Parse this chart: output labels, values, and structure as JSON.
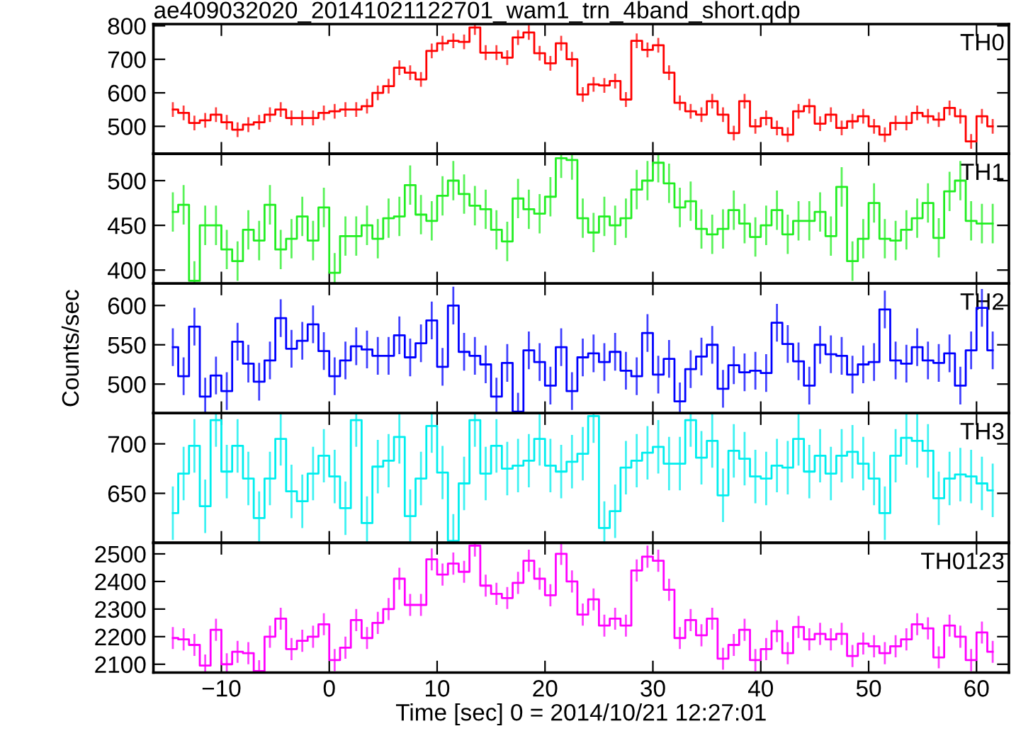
{
  "chart_data": [
    {
      "type": "step",
      "title": "ae409032020_20141021122701_wam1_trn_4band_short.qdp",
      "tick_labels": "y",
      "xlim": [
        -16.3,
        63
      ],
      "xticks": [
        -10,
        0,
        10,
        20,
        30,
        40,
        50,
        60
      ],
      "ylim": [
        418,
        805
      ],
      "yticks": [
        500,
        600,
        700,
        800
      ],
      "grid": false,
      "legend": false,
      "x": [
        -14.5,
        -13.5,
        -12.5,
        -11.5,
        -10.5,
        -9.5,
        -8.5,
        -7.5,
        -6.5,
        -5.5,
        -4.5,
        -3.5,
        -2.5,
        -1.5,
        -0.5,
        0.5,
        1.5,
        2.5,
        3.5,
        4.5,
        5.5,
        6.5,
        7.5,
        8.5,
        9.5,
        10.5,
        11.5,
        12.5,
        13.5,
        14.5,
        15.5,
        16.5,
        17.5,
        18.5,
        19.5,
        20.5,
        21.5,
        22.5,
        23.5,
        24.5,
        25.5,
        26.5,
        27.5,
        28.5,
        29.5,
        30.5,
        31.5,
        32.5,
        33.5,
        34.5,
        35.5,
        36.5,
        37.5,
        38.5,
        39.5,
        40.5,
        41.5,
        42.5,
        43.5,
        44.5,
        45.5,
        46.5,
        47.5,
        48.5,
        49.5,
        50.5,
        51.5,
        52.5,
        53.5,
        54.5,
        55.5,
        56.5,
        57.5,
        58.5,
        59.5,
        60.5,
        61.5
      ],
      "series": [
        {
          "name": "TH0",
          "color": "#ff0000",
          "values": [
            550,
            540,
            510,
            518,
            535,
            512,
            490,
            505,
            512,
            535,
            550,
            525,
            525,
            525,
            540,
            545,
            550,
            550,
            560,
            600,
            620,
            675,
            660,
            640,
            725,
            748,
            755,
            752,
            795,
            720,
            720,
            705,
            765,
            780,
            718,
            688,
            748,
            700,
            595,
            625,
            622,
            635,
            580,
            755,
            728,
            742,
            660,
            570,
            545,
            535,
            575,
            535,
            480,
            575,
            500,
            525,
            495,
            475,
            545,
            560,
            508,
            535,
            495,
            515,
            530,
            500,
            475,
            510,
            510,
            540,
            530,
            520,
            555,
            530,
            455,
            530,
            500
          ],
          "errors": [
            22,
            22,
            22,
            22,
            22,
            22,
            22,
            22,
            22,
            22,
            22,
            22,
            22,
            22,
            22,
            22,
            22,
            22,
            22,
            22,
            22,
            22,
            22,
            22,
            22,
            22,
            22,
            22,
            22,
            22,
            22,
            22,
            22,
            22,
            22,
            22,
            22,
            22,
            22,
            22,
            22,
            22,
            22,
            22,
            22,
            22,
            22,
            22,
            22,
            22,
            22,
            22,
            22,
            22,
            22,
            22,
            22,
            22,
            22,
            22,
            22,
            22,
            22,
            22,
            22,
            22,
            22,
            22,
            22,
            22,
            22,
            22,
            22,
            22,
            22,
            22,
            22
          ]
        }
      ]
    },
    {
      "type": "step",
      "tick_labels": "y",
      "xlim": [
        -16.3,
        63
      ],
      "xticks": [
        -10,
        0,
        10,
        20,
        30,
        40,
        50,
        60
      ],
      "ylim": [
        385,
        530
      ],
      "yticks": [
        400,
        450,
        500
      ],
      "grid": false,
      "legend": false,
      "x": [
        -14.5,
        -13.5,
        -12.5,
        -11.5,
        -10.5,
        -9.5,
        -8.5,
        -7.5,
        -6.5,
        -5.5,
        -4.5,
        -3.5,
        -2.5,
        -1.5,
        -0.5,
        0.5,
        1.5,
        2.5,
        3.5,
        4.5,
        5.5,
        6.5,
        7.5,
        8.5,
        9.5,
        10.5,
        11.5,
        12.5,
        13.5,
        14.5,
        15.5,
        16.5,
        17.5,
        18.5,
        19.5,
        20.5,
        21.5,
        22.5,
        23.5,
        24.5,
        25.5,
        26.5,
        27.5,
        28.5,
        29.5,
        30.5,
        31.5,
        32.5,
        33.5,
        34.5,
        35.5,
        36.5,
        37.5,
        38.5,
        39.5,
        40.5,
        41.5,
        42.5,
        43.5,
        44.5,
        45.5,
        46.5,
        47.5,
        48.5,
        49.5,
        50.5,
        51.5,
        52.5,
        53.5,
        54.5,
        55.5,
        56.5,
        57.5,
        58.5,
        59.5,
        60.5,
        61.5
      ],
      "series": [
        {
          "name": "TH1",
          "color": "#22ee22",
          "values": [
            465,
            473,
            388,
            450,
            450,
            423,
            410,
            445,
            433,
            473,
            423,
            435,
            460,
            433,
            470,
            397,
            438,
            438,
            450,
            435,
            458,
            460,
            495,
            462,
            455,
            483,
            500,
            485,
            472,
            468,
            445,
            432,
            480,
            468,
            463,
            482,
            525,
            523,
            458,
            442,
            460,
            450,
            458,
            490,
            500,
            520,
            497,
            470,
            477,
            446,
            440,
            446,
            467,
            452,
            437,
            450,
            467,
            440,
            455,
            455,
            465,
            438,
            493,
            410,
            435,
            475,
            435,
            433,
            445,
            458,
            475,
            436,
            488,
            500,
            455,
            452,
            452
          ],
          "errors": [
            22,
            22,
            22,
            22,
            22,
            22,
            22,
            22,
            22,
            22,
            22,
            22,
            22,
            22,
            22,
            22,
            22,
            22,
            22,
            22,
            22,
            22,
            22,
            22,
            22,
            22,
            22,
            22,
            22,
            22,
            22,
            22,
            22,
            22,
            22,
            22,
            22,
            22,
            22,
            22,
            22,
            22,
            22,
            22,
            22,
            22,
            22,
            22,
            22,
            22,
            22,
            22,
            22,
            22,
            22,
            22,
            22,
            22,
            22,
            22,
            22,
            22,
            22,
            22,
            22,
            22,
            22,
            22,
            22,
            22,
            22,
            22,
            22,
            22,
            22,
            22,
            22
          ]
        }
      ]
    },
    {
      "type": "step",
      "tick_labels": "y",
      "ylabel": "Counts/sec",
      "xlim": [
        -16.3,
        63
      ],
      "xticks": [
        -10,
        0,
        10,
        20,
        30,
        40,
        50,
        60
      ],
      "ylim": [
        463,
        628
      ],
      "yticks": [
        500,
        550,
        600
      ],
      "grid": false,
      "legend": false,
      "x": [
        -14.5,
        -13.5,
        -12.5,
        -11.5,
        -10.5,
        -9.5,
        -8.5,
        -7.5,
        -6.5,
        -5.5,
        -4.5,
        -3.5,
        -2.5,
        -1.5,
        -0.5,
        0.5,
        1.5,
        2.5,
        3.5,
        4.5,
        5.5,
        6.5,
        7.5,
        8.5,
        9.5,
        10.5,
        11.5,
        12.5,
        13.5,
        14.5,
        15.5,
        16.5,
        17.5,
        18.5,
        19.5,
        20.5,
        21.5,
        22.5,
        23.5,
        24.5,
        25.5,
        26.5,
        27.5,
        28.5,
        29.5,
        30.5,
        31.5,
        32.5,
        33.5,
        34.5,
        35.5,
        36.5,
        37.5,
        38.5,
        39.5,
        40.5,
        41.5,
        42.5,
        43.5,
        44.5,
        45.5,
        46.5,
        47.5,
        48.5,
        49.5,
        50.5,
        51.5,
        52.5,
        53.5,
        54.5,
        55.5,
        56.5,
        57.5,
        58.5,
        59.5,
        60.5,
        61.5
      ],
      "series": [
        {
          "name": "TH2",
          "color": "#0000ff",
          "values": [
            547,
            510,
            573,
            484,
            511,
            491,
            554,
            526,
            503,
            530,
            584,
            545,
            555,
            576,
            542,
            510,
            530,
            548,
            544,
            536,
            536,
            562,
            534,
            552,
            581,
            522,
            600,
            541,
            536,
            525,
            484,
            527,
            465,
            543,
            528,
            498,
            547,
            491,
            534,
            539,
            528,
            541,
            517,
            510,
            565,
            512,
            532,
            478,
            519,
            535,
            550,
            494,
            524,
            515,
            517,
            514,
            578,
            551,
            529,
            498,
            550,
            538,
            536,
            512,
            525,
            528,
            595,
            530,
            526,
            547,
            530,
            527,
            539,
            498,
            543,
            597,
            543
          ],
          "errors": [
            24,
            24,
            24,
            24,
            24,
            24,
            24,
            24,
            24,
            24,
            24,
            24,
            24,
            24,
            24,
            24,
            24,
            24,
            24,
            24,
            24,
            24,
            24,
            24,
            24,
            24,
            24,
            24,
            24,
            24,
            24,
            24,
            24,
            24,
            24,
            24,
            24,
            24,
            24,
            24,
            24,
            24,
            24,
            24,
            24,
            24,
            24,
            24,
            24,
            24,
            24,
            24,
            24,
            24,
            24,
            24,
            24,
            24,
            24,
            24,
            24,
            24,
            24,
            24,
            24,
            24,
            24,
            24,
            24,
            24,
            24,
            24,
            24,
            24,
            24,
            24,
            24
          ]
        }
      ]
    },
    {
      "type": "step",
      "tick_labels": "y",
      "xlim": [
        -16.3,
        63
      ],
      "xticks": [
        -10,
        0,
        10,
        20,
        30,
        40,
        50,
        60
      ],
      "ylim": [
        600,
        731
      ],
      "yticks": [
        650,
        700
      ],
      "grid": false,
      "legend": false,
      "x": [
        -14.5,
        -13.5,
        -12.5,
        -11.5,
        -10.5,
        -9.5,
        -8.5,
        -7.5,
        -6.5,
        -5.5,
        -4.5,
        -3.5,
        -2.5,
        -1.5,
        -0.5,
        0.5,
        1.5,
        2.5,
        3.5,
        4.5,
        5.5,
        6.5,
        7.5,
        8.5,
        9.5,
        10.5,
        11.5,
        12.5,
        13.5,
        14.5,
        15.5,
        16.5,
        17.5,
        18.5,
        19.5,
        20.5,
        21.5,
        22.5,
        23.5,
        24.5,
        25.5,
        26.5,
        27.5,
        28.5,
        29.5,
        30.5,
        31.5,
        32.5,
        33.5,
        34.5,
        35.5,
        36.5,
        37.5,
        38.5,
        39.5,
        40.5,
        41.5,
        42.5,
        43.5,
        44.5,
        45.5,
        46.5,
        47.5,
        48.5,
        49.5,
        50.5,
        51.5,
        52.5,
        53.5,
        54.5,
        55.5,
        56.5,
        57.5,
        58.5,
        59.5,
        60.5,
        61.5
      ],
      "series": [
        {
          "name": "TH3",
          "color": "#00eeee",
          "values": [
            630,
            670,
            698,
            637,
            724,
            672,
            698,
            665,
            625,
            665,
            705,
            652,
            642,
            670,
            688,
            667,
            635,
            724,
            620,
            677,
            683,
            707,
            627,
            665,
            718,
            671,
            602,
            660,
            724,
            670,
            698,
            675,
            678,
            683,
            705,
            678,
            672,
            682,
            690,
            728,
            615,
            632,
            676,
            683,
            691,
            697,
            680,
            680,
            724,
            686,
            703,
            648,
            693,
            685,
            667,
            665,
            678,
            676,
            705,
            672,
            688,
            670,
            688,
            692,
            680,
            665,
            630,
            688,
            706,
            703,
            693,
            645,
            665,
            669,
            667,
            660,
            653
          ],
          "errors": [
            27,
            27,
            27,
            27,
            27,
            27,
            27,
            27,
            27,
            27,
            27,
            27,
            27,
            27,
            27,
            27,
            27,
            27,
            27,
            27,
            27,
            27,
            27,
            27,
            27,
            27,
            27,
            27,
            27,
            27,
            27,
            27,
            27,
            27,
            27,
            27,
            27,
            27,
            27,
            27,
            27,
            27,
            27,
            27,
            27,
            27,
            27,
            27,
            27,
            27,
            27,
            27,
            27,
            27,
            27,
            27,
            27,
            27,
            27,
            27,
            27,
            27,
            27,
            27,
            27,
            27,
            27,
            27,
            27,
            27,
            27,
            27,
            27,
            27,
            27,
            27,
            27
          ]
        }
      ]
    },
    {
      "type": "step",
      "xlabel": "Time [sec] 0 = 2014/10/21 12:27:01",
      "xlim": [
        -16.3,
        63
      ],
      "xticks": [
        -10,
        0,
        10,
        20,
        30,
        40,
        50,
        60
      ],
      "ylim": [
        2070,
        2540
      ],
      "yticks": [
        2100,
        2200,
        2300,
        2400,
        2500
      ],
      "grid": false,
      "legend": false,
      "x": [
        -14.5,
        -13.5,
        -12.5,
        -11.5,
        -10.5,
        -9.5,
        -8.5,
        -7.5,
        -6.5,
        -5.5,
        -4.5,
        -3.5,
        -2.5,
        -1.5,
        -0.5,
        0.5,
        1.5,
        2.5,
        3.5,
        4.5,
        5.5,
        6.5,
        7.5,
        8.5,
        9.5,
        10.5,
        11.5,
        12.5,
        13.5,
        14.5,
        15.5,
        16.5,
        17.5,
        18.5,
        19.5,
        20.5,
        21.5,
        22.5,
        23.5,
        24.5,
        25.5,
        26.5,
        27.5,
        28.5,
        29.5,
        30.5,
        31.5,
        32.5,
        33.5,
        34.5,
        35.5,
        36.5,
        37.5,
        38.5,
        39.5,
        40.5,
        41.5,
        42.5,
        43.5,
        44.5,
        45.5,
        46.5,
        47.5,
        48.5,
        49.5,
        50.5,
        51.5,
        52.5,
        53.5,
        54.5,
        55.5,
        56.5,
        57.5,
        58.5,
        59.5,
        60.5,
        61.5
      ],
      "series": [
        {
          "name": "TH0123",
          "color": "#ff00ff",
          "values": [
            2195,
            2190,
            2170,
            2095,
            2225,
            2100,
            2145,
            2140,
            2075,
            2200,
            2265,
            2155,
            2185,
            2200,
            2245,
            2115,
            2160,
            2260,
            2195,
            2250,
            2300,
            2410,
            2315,
            2315,
            2480,
            2425,
            2465,
            2435,
            2530,
            2385,
            2355,
            2340,
            2395,
            2475,
            2410,
            2350,
            2500,
            2400,
            2280,
            2335,
            2240,
            2265,
            2240,
            2440,
            2490,
            2475,
            2370,
            2195,
            2260,
            2205,
            2265,
            2120,
            2170,
            2225,
            2115,
            2155,
            2220,
            2140,
            2235,
            2190,
            2210,
            2190,
            2210,
            2130,
            2175,
            2165,
            2140,
            2165,
            2190,
            2245,
            2230,
            2125,
            2240,
            2200,
            2115,
            2215,
            2145
          ],
          "errors": [
            40,
            40,
            40,
            40,
            40,
            40,
            40,
            40,
            40,
            40,
            40,
            40,
            40,
            40,
            40,
            40,
            40,
            40,
            40,
            40,
            40,
            40,
            40,
            40,
            40,
            40,
            40,
            40,
            40,
            40,
            40,
            40,
            40,
            40,
            40,
            40,
            40,
            40,
            40,
            40,
            40,
            40,
            40,
            40,
            40,
            40,
            40,
            40,
            40,
            40,
            40,
            40,
            40,
            40,
            40,
            40,
            40,
            40,
            40,
            40,
            40,
            40,
            40,
            40,
            40,
            40,
            40,
            40,
            40,
            40,
            40,
            40,
            40,
            40,
            40,
            40,
            40
          ]
        }
      ]
    }
  ]
}
